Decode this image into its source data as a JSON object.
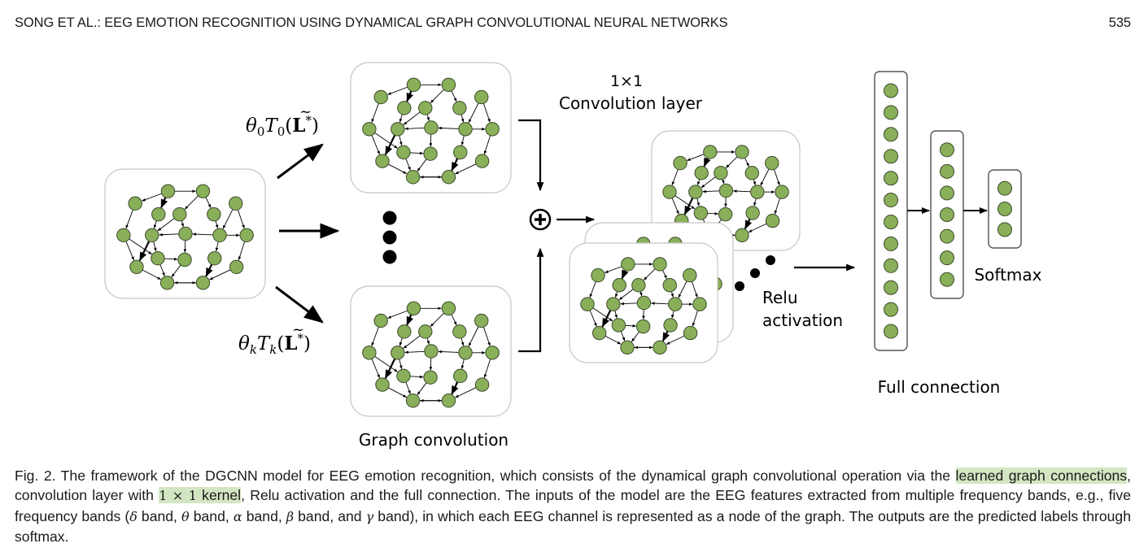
{
  "header": {
    "running_title": "SONG ET AL.: EEG EMOTION RECOGNITION USING DYNAMICAL GRAPH CONVOLUTIONAL NEURAL NETWORKS",
    "page_number": "535"
  },
  "figure": {
    "theta_top": {
      "theta": "θ",
      "sub0": "0",
      "T": "T",
      "L": "L",
      "star": "*"
    },
    "theta_bottom": {
      "theta": "θ",
      "subk": "k",
      "T": "T",
      "L": "L",
      "star": "*"
    },
    "conv_label_line1": "1×1",
    "conv_label_line2": "Convolution layer",
    "graph_conv_label": "Graph convolution",
    "relu_line1": "Relu",
    "relu_line2": "activation",
    "full_connection_label": "Full connection",
    "softmax_label": "Softmax",
    "node_color": "#8aaf5a",
    "fc_layers_node_counts": [
      12,
      7,
      3
    ]
  },
  "caption": {
    "p1": "Fig. 2. The framework of the DGCNN model for EEG emotion recognition, which consists of the dynamical graph convolutional operation via the",
    "hl1": "learned graph connections",
    "p2": ", convolution layer with",
    "hl2_math": "1 × 1",
    "hl2_text": " kernel",
    "p3": ", Relu activation and the full connection. The inputs of the model are the EEG features extracted from multiple frequency bands, e.g., five frequency bands (",
    "delta": "δ",
    "band_delta": " band, ",
    "theta": "θ",
    "band_theta": " band, ",
    "alpha": "α",
    "band_alpha": " band, ",
    "beta": "β",
    "band_beta": " band, and ",
    "gamma": "γ",
    "p4": " band), in which each EEG channel is represented as a node of the graph. The outputs are the predicted labels through softmax."
  }
}
